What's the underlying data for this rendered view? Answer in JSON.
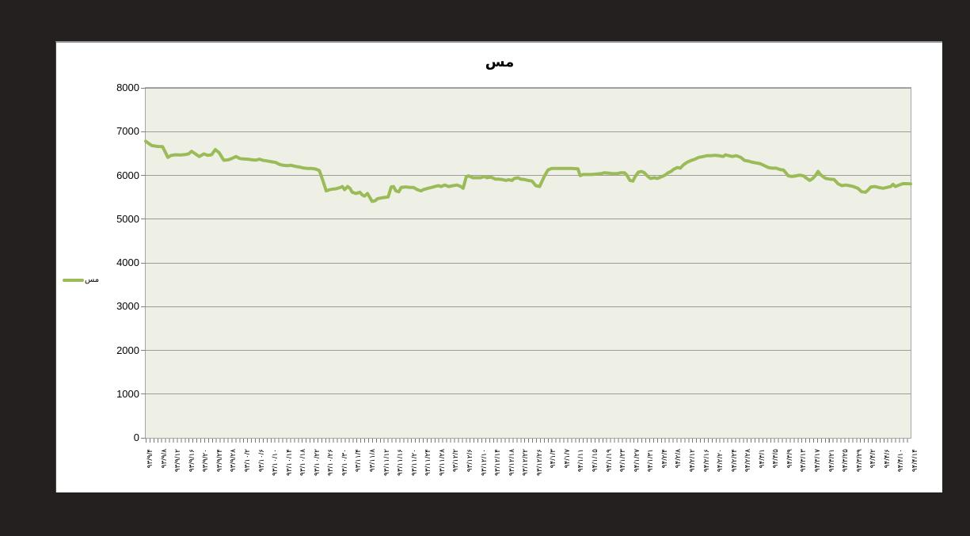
{
  "window": {
    "background_color": "#242020",
    "panel_color": "#ffffff"
  },
  "chart_data": {
    "type": "line",
    "title": "مس",
    "xlabel": "",
    "ylabel": "",
    "ylim": [
      0,
      8000
    ],
    "ytick_interval": 1000,
    "yticks": [
      "0",
      "1000",
      "2000",
      "3000",
      "4000",
      "5000",
      "6000",
      "7000",
      "8000"
    ],
    "grid": "horizontal",
    "plot_background": "#eef0e6",
    "gridline_color": "#9b9b9b",
    "legend": {
      "position": "left-middle",
      "entries": [
        {
          "label": "مس",
          "color": "#9bbb59"
        }
      ]
    },
    "x_labels": [
      "۹۳/۹/۴",
      "۹۳/۹/۸",
      "۹۳/۹/۱۲",
      "۹۳/۹/۱۶",
      "۹۳/۹/۲۰",
      "۹۳/۹/۲۴",
      "۹۳/۹/۲۸",
      "۹۳/۱۰/۲",
      "۹۳/۱۰/۶",
      "۹۳/۱۰/۱۰",
      "۹۳/۱۰/۱۴",
      "۹۳/۱۰/۱۸",
      "۹۳/۱۰/۲۲",
      "۹۳/۱۰/۲۶",
      "۹۳/۱۰/۳۰",
      "۹۳/۱۱/۴",
      "۹۳/۱۱/۸",
      "۹۳/۱۱/۱۲",
      "۹۳/۱۱/۱۶",
      "۹۳/۱۱/۲۰",
      "۹۳/۱۱/۲۴",
      "۹۳/۱۱/۲۸",
      "۹۳/۱۲/۲",
      "۹۳/۱۲/۶",
      "۹۳/۱۲/۱۰",
      "۹۳/۱۲/۱۴",
      "۹۳/۱۲/۱۸",
      "۹۳/۱۲/۲۲",
      "۹۳/۱۲/۲۶",
      "۹۴/۱/۳",
      "۹۴/۱/۷",
      "۹۴/۱/۱۱",
      "۹۴/۱/۱۵",
      "۹۴/۱/۱۹",
      "۹۴/۱/۲۳",
      "۹۴/۱/۲۷",
      "۹۴/۱/۳۱",
      "۹۴/۲/۴",
      "۹۴/۲/۸",
      "۹۴/۲/۱۲",
      "۹۴/۲/۱۶",
      "۹۴/۲/۲۰",
      "۹۴/۲/۲۴",
      "۹۴/۲/۲۸",
      "۹۴/۳/۱",
      "۹۴/۳/۵",
      "۹۴/۳/۹",
      "۹۴/۳/۱۳",
      "۹۴/۳/۱۷",
      "۹۴/۳/۲۱",
      "۹۴/۳/۲۵",
      "۹۴/۳/۲۹",
      "۹۴/۴/۲",
      "۹۴/۴/۶",
      "۹۴/۴/۱۰",
      "۹۴/۴/۱۴"
    ],
    "series": [
      {
        "name": "مس",
        "color": "#9bbb59",
        "points": [
          [
            0.0,
            6780
          ],
          [
            0.004,
            6730
          ],
          [
            0.008,
            6680
          ],
          [
            0.016,
            6660
          ],
          [
            0.022,
            6655
          ],
          [
            0.026,
            6520
          ],
          [
            0.029,
            6410
          ],
          [
            0.033,
            6455
          ],
          [
            0.039,
            6470
          ],
          [
            0.046,
            6465
          ],
          [
            0.051,
            6475
          ],
          [
            0.056,
            6490
          ],
          [
            0.06,
            6550
          ],
          [
            0.065,
            6490
          ],
          [
            0.07,
            6430
          ],
          [
            0.076,
            6490
          ],
          [
            0.081,
            6460
          ],
          [
            0.086,
            6470
          ],
          [
            0.091,
            6590
          ],
          [
            0.096,
            6520
          ],
          [
            0.102,
            6345
          ],
          [
            0.108,
            6355
          ],
          [
            0.113,
            6390
          ],
          [
            0.118,
            6430
          ],
          [
            0.123,
            6385
          ],
          [
            0.128,
            6375
          ],
          [
            0.134,
            6370
          ],
          [
            0.139,
            6355
          ],
          [
            0.144,
            6350
          ],
          [
            0.149,
            6370
          ],
          [
            0.154,
            6340
          ],
          [
            0.159,
            6330
          ],
          [
            0.165,
            6310
          ],
          [
            0.17,
            6295
          ],
          [
            0.175,
            6250
          ],
          [
            0.18,
            6230
          ],
          [
            0.185,
            6220
          ],
          [
            0.19,
            6230
          ],
          [
            0.196,
            6205
          ],
          [
            0.201,
            6190
          ],
          [
            0.206,
            6170
          ],
          [
            0.211,
            6160
          ],
          [
            0.216,
            6160
          ],
          [
            0.222,
            6145
          ],
          [
            0.227,
            6110
          ],
          [
            0.232,
            5860
          ],
          [
            0.236,
            5645
          ],
          [
            0.24,
            5670
          ],
          [
            0.244,
            5685
          ],
          [
            0.248,
            5690
          ],
          [
            0.254,
            5720
          ],
          [
            0.257,
            5745
          ],
          [
            0.26,
            5675
          ],
          [
            0.264,
            5745
          ],
          [
            0.267,
            5705
          ],
          [
            0.27,
            5615
          ],
          [
            0.275,
            5585
          ],
          [
            0.28,
            5615
          ],
          [
            0.283,
            5555
          ],
          [
            0.286,
            5525
          ],
          [
            0.29,
            5585
          ],
          [
            0.293,
            5495
          ],
          [
            0.296,
            5405
          ],
          [
            0.3,
            5420
          ],
          [
            0.303,
            5465
          ],
          [
            0.308,
            5485
          ],
          [
            0.312,
            5495
          ],
          [
            0.317,
            5505
          ],
          [
            0.321,
            5735
          ],
          [
            0.324,
            5745
          ],
          [
            0.327,
            5645
          ],
          [
            0.331,
            5625
          ],
          [
            0.334,
            5725
          ],
          [
            0.34,
            5735
          ],
          [
            0.345,
            5725
          ],
          [
            0.35,
            5725
          ],
          [
            0.355,
            5675
          ],
          [
            0.36,
            5645
          ],
          [
            0.363,
            5675
          ],
          [
            0.369,
            5705
          ],
          [
            0.374,
            5725
          ],
          [
            0.378,
            5745
          ],
          [
            0.383,
            5765
          ],
          [
            0.386,
            5745
          ],
          [
            0.391,
            5780
          ],
          [
            0.396,
            5745
          ],
          [
            0.402,
            5765
          ],
          [
            0.407,
            5780
          ],
          [
            0.412,
            5745
          ],
          [
            0.415,
            5705
          ],
          [
            0.419,
            5965
          ],
          [
            0.422,
            5990
          ],
          [
            0.428,
            5945
          ],
          [
            0.433,
            5945
          ],
          [
            0.438,
            5945
          ],
          [
            0.443,
            5975
          ],
          [
            0.446,
            5945
          ],
          [
            0.451,
            5965
          ],
          [
            0.457,
            5915
          ],
          [
            0.461,
            5915
          ],
          [
            0.466,
            5905
          ],
          [
            0.471,
            5885
          ],
          [
            0.474,
            5900
          ],
          [
            0.479,
            5885
          ],
          [
            0.482,
            5930
          ],
          [
            0.487,
            5945
          ],
          [
            0.49,
            5915
          ],
          [
            0.495,
            5905
          ],
          [
            0.5,
            5885
          ],
          [
            0.505,
            5870
          ],
          [
            0.51,
            5765
          ],
          [
            0.515,
            5745
          ],
          [
            0.521,
            5975
          ],
          [
            0.526,
            6125
          ],
          [
            0.531,
            6160
          ],
          [
            0.557,
            6160
          ],
          [
            0.565,
            6150
          ],
          [
            0.568,
            5995
          ],
          [
            0.572,
            6020
          ],
          [
            0.583,
            6020
          ],
          [
            0.59,
            6030
          ],
          [
            0.595,
            6040
          ],
          [
            0.6,
            6060
          ],
          [
            0.606,
            6050
          ],
          [
            0.611,
            6040
          ],
          [
            0.616,
            6040
          ],
          [
            0.621,
            6060
          ],
          [
            0.626,
            6060
          ],
          [
            0.629,
            6005
          ],
          [
            0.633,
            5885
          ],
          [
            0.637,
            5870
          ],
          [
            0.64,
            5975
          ],
          [
            0.644,
            6070
          ],
          [
            0.648,
            6090
          ],
          [
            0.652,
            6060
          ],
          [
            0.657,
            5965
          ],
          [
            0.66,
            5930
          ],
          [
            0.665,
            5945
          ],
          [
            0.669,
            5930
          ],
          [
            0.674,
            5965
          ],
          [
            0.679,
            6005
          ],
          [
            0.683,
            6060
          ],
          [
            0.687,
            6090
          ],
          [
            0.69,
            6135
          ],
          [
            0.695,
            6180
          ],
          [
            0.699,
            6165
          ],
          [
            0.703,
            6240
          ],
          [
            0.708,
            6300
          ],
          [
            0.713,
            6340
          ],
          [
            0.718,
            6370
          ],
          [
            0.723,
            6410
          ],
          [
            0.729,
            6430
          ],
          [
            0.734,
            6450
          ],
          [
            0.739,
            6450
          ],
          [
            0.744,
            6460
          ],
          [
            0.749,
            6450
          ],
          [
            0.755,
            6430
          ],
          [
            0.758,
            6470
          ],
          [
            0.762,
            6450
          ],
          [
            0.767,
            6430
          ],
          [
            0.772,
            6450
          ],
          [
            0.775,
            6430
          ],
          [
            0.778,
            6410
          ],
          [
            0.783,
            6340
          ],
          [
            0.788,
            6325
          ],
          [
            0.793,
            6300
          ],
          [
            0.798,
            6285
          ],
          [
            0.803,
            6270
          ],
          [
            0.808,
            6230
          ],
          [
            0.814,
            6180
          ],
          [
            0.819,
            6165
          ],
          [
            0.824,
            6165
          ],
          [
            0.829,
            6135
          ],
          [
            0.834,
            6120
          ],
          [
            0.837,
            6060
          ],
          [
            0.84,
            5990
          ],
          [
            0.845,
            5975
          ],
          [
            0.85,
            5990
          ],
          [
            0.855,
            6005
          ],
          [
            0.86,
            5990
          ],
          [
            0.863,
            5945
          ],
          [
            0.868,
            5885
          ],
          [
            0.872,
            5930
          ],
          [
            0.876,
            6005
          ],
          [
            0.879,
            6090
          ],
          [
            0.882,
            6020
          ],
          [
            0.886,
            5965
          ],
          [
            0.889,
            5930
          ],
          [
            0.894,
            5915
          ],
          [
            0.9,
            5905
          ],
          [
            0.905,
            5810
          ],
          [
            0.91,
            5765
          ],
          [
            0.915,
            5780
          ],
          [
            0.92,
            5765
          ],
          [
            0.925,
            5745
          ],
          [
            0.931,
            5705
          ],
          [
            0.936,
            5625
          ],
          [
            0.941,
            5615
          ],
          [
            0.944,
            5660
          ],
          [
            0.948,
            5735
          ],
          [
            0.953,
            5745
          ],
          [
            0.958,
            5725
          ],
          [
            0.964,
            5705
          ],
          [
            0.969,
            5725
          ],
          [
            0.974,
            5745
          ],
          [
            0.977,
            5795
          ],
          [
            0.98,
            5745
          ],
          [
            0.985,
            5780
          ],
          [
            0.99,
            5810
          ],
          [
            0.996,
            5810
          ],
          [
            1.0,
            5805
          ]
        ]
      }
    ]
  }
}
